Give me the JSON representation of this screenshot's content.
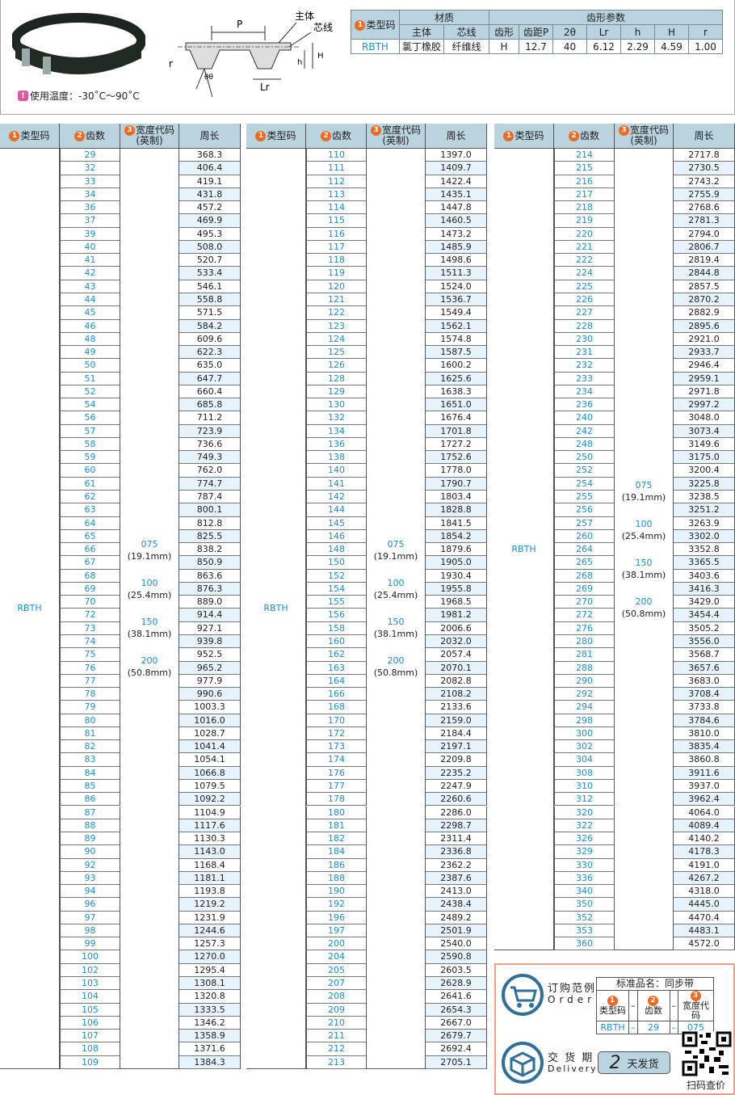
{
  "top": {
    "temperature": "使用温度：-30˚C～90˚C",
    "diagram_labels": {
      "body": "主体",
      "core": "芯线",
      "P": "P",
      "r": "r",
      "theta": "θθ",
      "h": "h",
      "H": "H",
      "Lr": "Lr"
    }
  },
  "spec": {
    "type_header": "类型码",
    "material_header": "材质",
    "tooth_header": "齿形参数",
    "sub": [
      "主体",
      "芯线",
      "齿形",
      "齿距P",
      "2θ",
      "Lr",
      "h",
      "H",
      "r"
    ],
    "row": [
      "RBTH",
      "氯丁橡胶",
      "纤维线",
      "H",
      "12.7",
      "40",
      "6.12",
      "2.29",
      "4.59",
      "1.00"
    ]
  },
  "table_headers": {
    "type": "类型码",
    "teeth": "齿数",
    "width": "宽度代码",
    "width_sub": "(英制)",
    "perimeter": "周长"
  },
  "type_code": "RBTH",
  "width_codes": [
    {
      "code": "075",
      "mm": "(19.1mm)"
    },
    {
      "code": "100",
      "mm": "(25.4mm)"
    },
    {
      "code": "150",
      "mm": "(38.1mm)"
    },
    {
      "code": "200",
      "mm": "(50.8mm)"
    }
  ],
  "tables": [
    [
      [
        "29",
        "368.3"
      ],
      [
        "32",
        "406.4"
      ],
      [
        "33",
        "419.1"
      ],
      [
        "34",
        "431.8"
      ],
      [
        "36",
        "457.2"
      ],
      [
        "37",
        "469.9"
      ],
      [
        "39",
        "495.3"
      ],
      [
        "40",
        "508.0"
      ],
      [
        "41",
        "520.7"
      ],
      [
        "42",
        "533.4"
      ],
      [
        "43",
        "546.1"
      ],
      [
        "44",
        "558.8"
      ],
      [
        "45",
        "571.5"
      ],
      [
        "46",
        "584.2"
      ],
      [
        "48",
        "609.6"
      ],
      [
        "49",
        "622.3"
      ],
      [
        "50",
        "635.0"
      ],
      [
        "51",
        "647.7"
      ],
      [
        "52",
        "660.4"
      ],
      [
        "54",
        "685.8"
      ],
      [
        "56",
        "711.2"
      ],
      [
        "57",
        "723.9"
      ],
      [
        "58",
        "736.6"
      ],
      [
        "59",
        "749.3"
      ],
      [
        "60",
        "762.0"
      ],
      [
        "61",
        "774.7"
      ],
      [
        "62",
        "787.4"
      ],
      [
        "63",
        "800.1"
      ],
      [
        "64",
        "812.8"
      ],
      [
        "65",
        "825.5"
      ],
      [
        "66",
        "838.2"
      ],
      [
        "67",
        "850.9"
      ],
      [
        "68",
        "863.6"
      ],
      [
        "69",
        "876.3"
      ],
      [
        "70",
        "889.0"
      ],
      [
        "72",
        "914.4"
      ],
      [
        "73",
        "927.1"
      ],
      [
        "74",
        "939.8"
      ],
      [
        "75",
        "952.5"
      ],
      [
        "76",
        "965.2"
      ],
      [
        "77",
        "977.9"
      ],
      [
        "78",
        "990.6"
      ],
      [
        "79",
        "1003.3"
      ],
      [
        "80",
        "1016.0"
      ],
      [
        "81",
        "1028.7"
      ],
      [
        "82",
        "1041.4"
      ],
      [
        "83",
        "1054.1"
      ],
      [
        "84",
        "1066.8"
      ],
      [
        "85",
        "1079.5"
      ],
      [
        "86",
        "1092.2"
      ],
      [
        "87",
        "1104.9"
      ],
      [
        "88",
        "1117.6"
      ],
      [
        "89",
        "1130.3"
      ],
      [
        "90",
        "1143.0"
      ],
      [
        "92",
        "1168.4"
      ],
      [
        "93",
        "1181.1"
      ],
      [
        "94",
        "1193.8"
      ],
      [
        "96",
        "1219.2"
      ],
      [
        "97",
        "1231.9"
      ],
      [
        "98",
        "1244.6"
      ],
      [
        "99",
        "1257.3"
      ],
      [
        "100",
        "1270.0"
      ],
      [
        "102",
        "1295.4"
      ],
      [
        "103",
        "1308.1"
      ],
      [
        "104",
        "1320.8"
      ],
      [
        "105",
        "1333.5"
      ],
      [
        "106",
        "1346.2"
      ],
      [
        "107",
        "1358.9"
      ],
      [
        "108",
        "1371.6"
      ],
      [
        "109",
        "1384.3"
      ]
    ],
    [
      [
        "110",
        "1397.0"
      ],
      [
        "111",
        "1409.7"
      ],
      [
        "112",
        "1422.4"
      ],
      [
        "113",
        "1435.1"
      ],
      [
        "114",
        "1447.8"
      ],
      [
        "115",
        "1460.5"
      ],
      [
        "116",
        "1473.2"
      ],
      [
        "117",
        "1485.9"
      ],
      [
        "118",
        "1498.6"
      ],
      [
        "119",
        "1511.3"
      ],
      [
        "120",
        "1524.0"
      ],
      [
        "121",
        "1536.7"
      ],
      [
        "122",
        "1549.4"
      ],
      [
        "123",
        "1562.1"
      ],
      [
        "124",
        "1574.8"
      ],
      [
        "125",
        "1587.5"
      ],
      [
        "126",
        "1600.2"
      ],
      [
        "128",
        "1625.6"
      ],
      [
        "129",
        "1638.3"
      ],
      [
        "130",
        "1651.0"
      ],
      [
        "132",
        "1676.4"
      ],
      [
        "134",
        "1701.8"
      ],
      [
        "136",
        "1727.2"
      ],
      [
        "138",
        "1752.6"
      ],
      [
        "140",
        "1778.0"
      ],
      [
        "141",
        "1790.7"
      ],
      [
        "142",
        "1803.4"
      ],
      [
        "144",
        "1828.8"
      ],
      [
        "145",
        "1841.5"
      ],
      [
        "146",
        "1854.2"
      ],
      [
        "148",
        "1879.6"
      ],
      [
        "150",
        "1905.0"
      ],
      [
        "152",
        "1930.4"
      ],
      [
        "154",
        "1955.8"
      ],
      [
        "155",
        "1968.5"
      ],
      [
        "156",
        "1981.2"
      ],
      [
        "158",
        "2006.6"
      ],
      [
        "160",
        "2032.0"
      ],
      [
        "162",
        "2057.4"
      ],
      [
        "163",
        "2070.1"
      ],
      [
        "164",
        "2082.8"
      ],
      [
        "166",
        "2108.2"
      ],
      [
        "168",
        "2133.6"
      ],
      [
        "170",
        "2159.0"
      ],
      [
        "172",
        "2184.4"
      ],
      [
        "173",
        "2197.1"
      ],
      [
        "174",
        "2209.8"
      ],
      [
        "176",
        "2235.2"
      ],
      [
        "177",
        "2247.9"
      ],
      [
        "178",
        "2260.6"
      ],
      [
        "180",
        "2286.0"
      ],
      [
        "181",
        "2298.7"
      ],
      [
        "182",
        "2311.4"
      ],
      [
        "184",
        "2336.8"
      ],
      [
        "186",
        "2362.2"
      ],
      [
        "188",
        "2387.6"
      ],
      [
        "190",
        "2413.0"
      ],
      [
        "192",
        "2438.4"
      ],
      [
        "196",
        "2489.2"
      ],
      [
        "197",
        "2501.9"
      ],
      [
        "200",
        "2540.0"
      ],
      [
        "204",
        "2590.8"
      ],
      [
        "205",
        "2603.5"
      ],
      [
        "207",
        "2628.9"
      ],
      [
        "208",
        "2641.6"
      ],
      [
        "209",
        "2654.3"
      ],
      [
        "210",
        "2667.0"
      ],
      [
        "211",
        "2679.7"
      ],
      [
        "212",
        "2692.4"
      ],
      [
        "213",
        "2705.1"
      ]
    ],
    [
      [
        "214",
        "2717.8"
      ],
      [
        "215",
        "2730.5"
      ],
      [
        "216",
        "2743.2"
      ],
      [
        "217",
        "2755.9"
      ],
      [
        "218",
        "2768.6"
      ],
      [
        "219",
        "2781.3"
      ],
      [
        "220",
        "2794.0"
      ],
      [
        "221",
        "2806.7"
      ],
      [
        "222",
        "2819.4"
      ],
      [
        "224",
        "2844.8"
      ],
      [
        "225",
        "2857.5"
      ],
      [
        "226",
        "2870.2"
      ],
      [
        "227",
        "2882.9"
      ],
      [
        "228",
        "2895.6"
      ],
      [
        "230",
        "2921.0"
      ],
      [
        "231",
        "2933.7"
      ],
      [
        "232",
        "2946.4"
      ],
      [
        "233",
        "2959.1"
      ],
      [
        "234",
        "2971.8"
      ],
      [
        "236",
        "2997.2"
      ],
      [
        "240",
        "3048.0"
      ],
      [
        "242",
        "3073.4"
      ],
      [
        "248",
        "3149.6"
      ],
      [
        "250",
        "3175.0"
      ],
      [
        "252",
        "3200.4"
      ],
      [
        "254",
        "3225.8"
      ],
      [
        "255",
        "3238.5"
      ],
      [
        "256",
        "3251.2"
      ],
      [
        "257",
        "3263.9"
      ],
      [
        "260",
        "3302.0"
      ],
      [
        "264",
        "3352.8"
      ],
      [
        "265",
        "3365.5"
      ],
      [
        "268",
        "3403.6"
      ],
      [
        "269",
        "3416.3"
      ],
      [
        "270",
        "3429.0"
      ],
      [
        "272",
        "3454.4"
      ],
      [
        "276",
        "3505.2"
      ],
      [
        "280",
        "3556.0"
      ],
      [
        "281",
        "3568.7"
      ],
      [
        "288",
        "3657.6"
      ],
      [
        "290",
        "3683.0"
      ],
      [
        "292",
        "3708.4"
      ],
      [
        "294",
        "3733.8"
      ],
      [
        "298",
        "3784.6"
      ],
      [
        "300",
        "3810.0"
      ],
      [
        "302",
        "3835.4"
      ],
      [
        "304",
        "3860.8"
      ],
      [
        "308",
        "3911.6"
      ],
      [
        "310",
        "3937.0"
      ],
      [
        "312",
        "3962.4"
      ],
      [
        "320",
        "4064.0"
      ],
      [
        "322",
        "4089.4"
      ],
      [
        "326",
        "4140.2"
      ],
      [
        "329",
        "4178.3"
      ],
      [
        "330",
        "4191.0"
      ],
      [
        "336",
        "4267.2"
      ],
      [
        "340",
        "4318.0"
      ],
      [
        "350",
        "4445.0"
      ],
      [
        "352",
        "4470.4"
      ],
      [
        "353",
        "4483.1"
      ],
      [
        "360",
        "4572.0"
      ]
    ]
  ],
  "order": {
    "title_cn": "订购范例",
    "title_en": "Order",
    "std_name": "标准品名：同步带",
    "cols": [
      "类型码",
      "齿数",
      "宽度代码"
    ],
    "dash": "–",
    "example": [
      "RBTH",
      "29",
      "075"
    ],
    "delivery_cn": "交 货 期",
    "delivery_en": "Delivery",
    "days": "2",
    "days_label": "天发货",
    "qr_label": "扫码查价"
  },
  "colors": {
    "header": "#b9d3df",
    "accent_blue": "#1a8fd8",
    "badge_orange": "#f26a21",
    "alt_row": "#e6f3fa"
  }
}
